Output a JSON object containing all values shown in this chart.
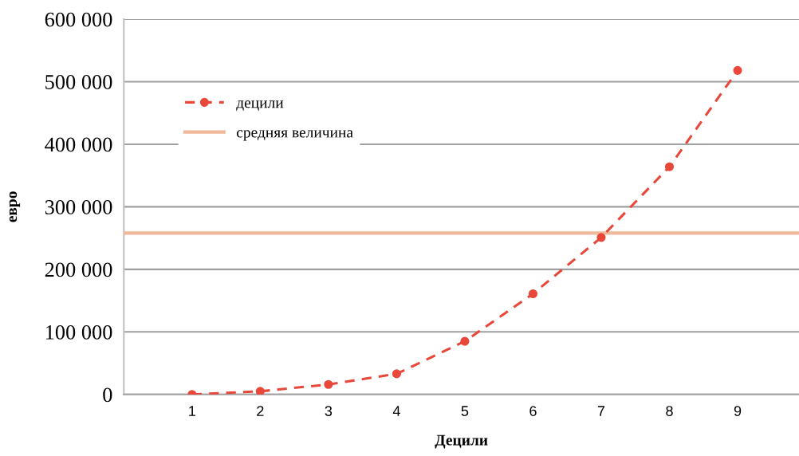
{
  "chart_data": {
    "type": "line",
    "xlabel": "Децили",
    "ylabel": "евро",
    "x": [
      1,
      2,
      3,
      4,
      5,
      6,
      7,
      8,
      9
    ],
    "series": [
      {
        "name": "децили",
        "color": "#e8473a",
        "values": [
          0,
          5000,
          16000,
          33000,
          85000,
          161000,
          251000,
          364000,
          518000
        ]
      }
    ],
    "ref_lines": [
      {
        "axis": "y",
        "value": 258000,
        "label": "средняя величина",
        "color": "#f0b89a"
      }
    ],
    "xlim": [
      0,
      9.9
    ],
    "xticks": [
      1,
      2,
      3,
      4,
      5,
      6,
      7,
      8,
      9
    ],
    "ylim": [
      0,
      600000
    ],
    "yticks": [
      {
        "value": 0,
        "label": "0"
      },
      {
        "value": 100000,
        "label": "100 000"
      },
      {
        "value": 200000,
        "label": "200 000"
      },
      {
        "value": 300000,
        "label": "300 000"
      },
      {
        "value": 400000,
        "label": "400 000"
      },
      {
        "value": 500000,
        "label": "500 000"
      },
      {
        "value": 600000,
        "label": "600 000"
      }
    ],
    "grid": "y",
    "legend": "top left",
    "marker": "circle",
    "line_style": "dashed"
  }
}
